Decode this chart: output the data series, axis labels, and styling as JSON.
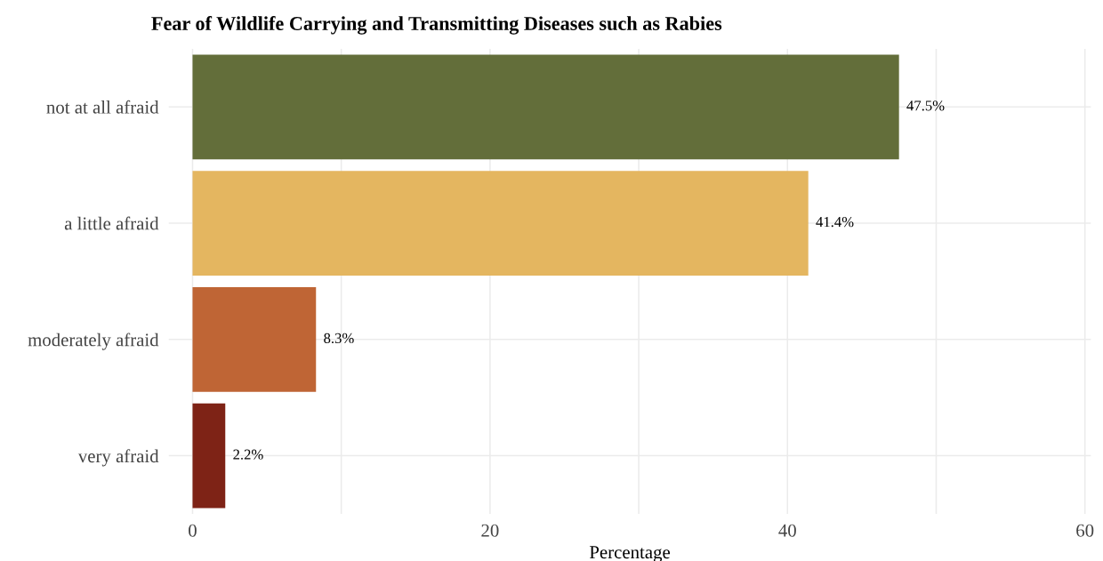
{
  "chart_data": {
    "type": "bar",
    "orientation": "horizontal",
    "title": "Fear of Wildlife Carrying and Transmitting Diseases such as Rabies",
    "xlabel": "Percentage",
    "categories": [
      "not at all afraid",
      "a little afraid",
      "moderately afraid",
      "very afraid"
    ],
    "values": [
      47.5,
      41.4,
      8.3,
      2.2
    ],
    "colors": [
      "#636e3a",
      "#e4b660",
      "#bf6535",
      "#7e2316"
    ],
    "value_labels": [
      "47.5%",
      "41.4%",
      "8.3%",
      "2.2%"
    ],
    "xlim": [
      -1.6,
      60.4
    ],
    "xticks": [
      0,
      {
        "value": 10,
        "label": null
      },
      20,
      {
        "value": 30,
        "label": null
      },
      40,
      {
        "value": 50,
        "label": null
      },
      60
    ],
    "grid": true
  }
}
